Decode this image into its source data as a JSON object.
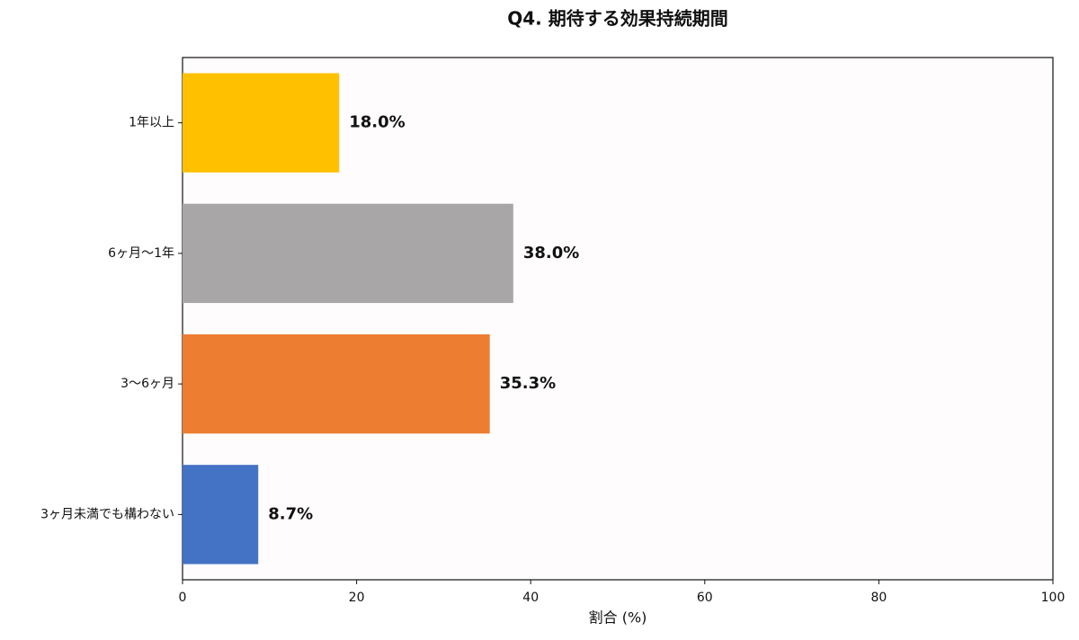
{
  "chart_data": {
    "type": "barh",
    "title": "Q4. 期待する効果持続期間",
    "x_label": "割合 (%)",
    "categories": [
      "1年以上",
      "6ヶ月〜1年",
      "3〜6ヶ月",
      "3ヶ月未満でも構わない"
    ],
    "values": [
      18.0,
      38.0,
      35.3,
      8.7
    ],
    "value_labels": [
      "18.0%",
      "38.0%",
      "35.3%",
      "8.7%"
    ],
    "colors": [
      "#ffc000",
      "#a9a6a8",
      "#ed7d31",
      "#4472c4"
    ],
    "xlim": [
      0,
      100
    ],
    "xticks": [
      0,
      20,
      40,
      60,
      80,
      100
    ]
  }
}
